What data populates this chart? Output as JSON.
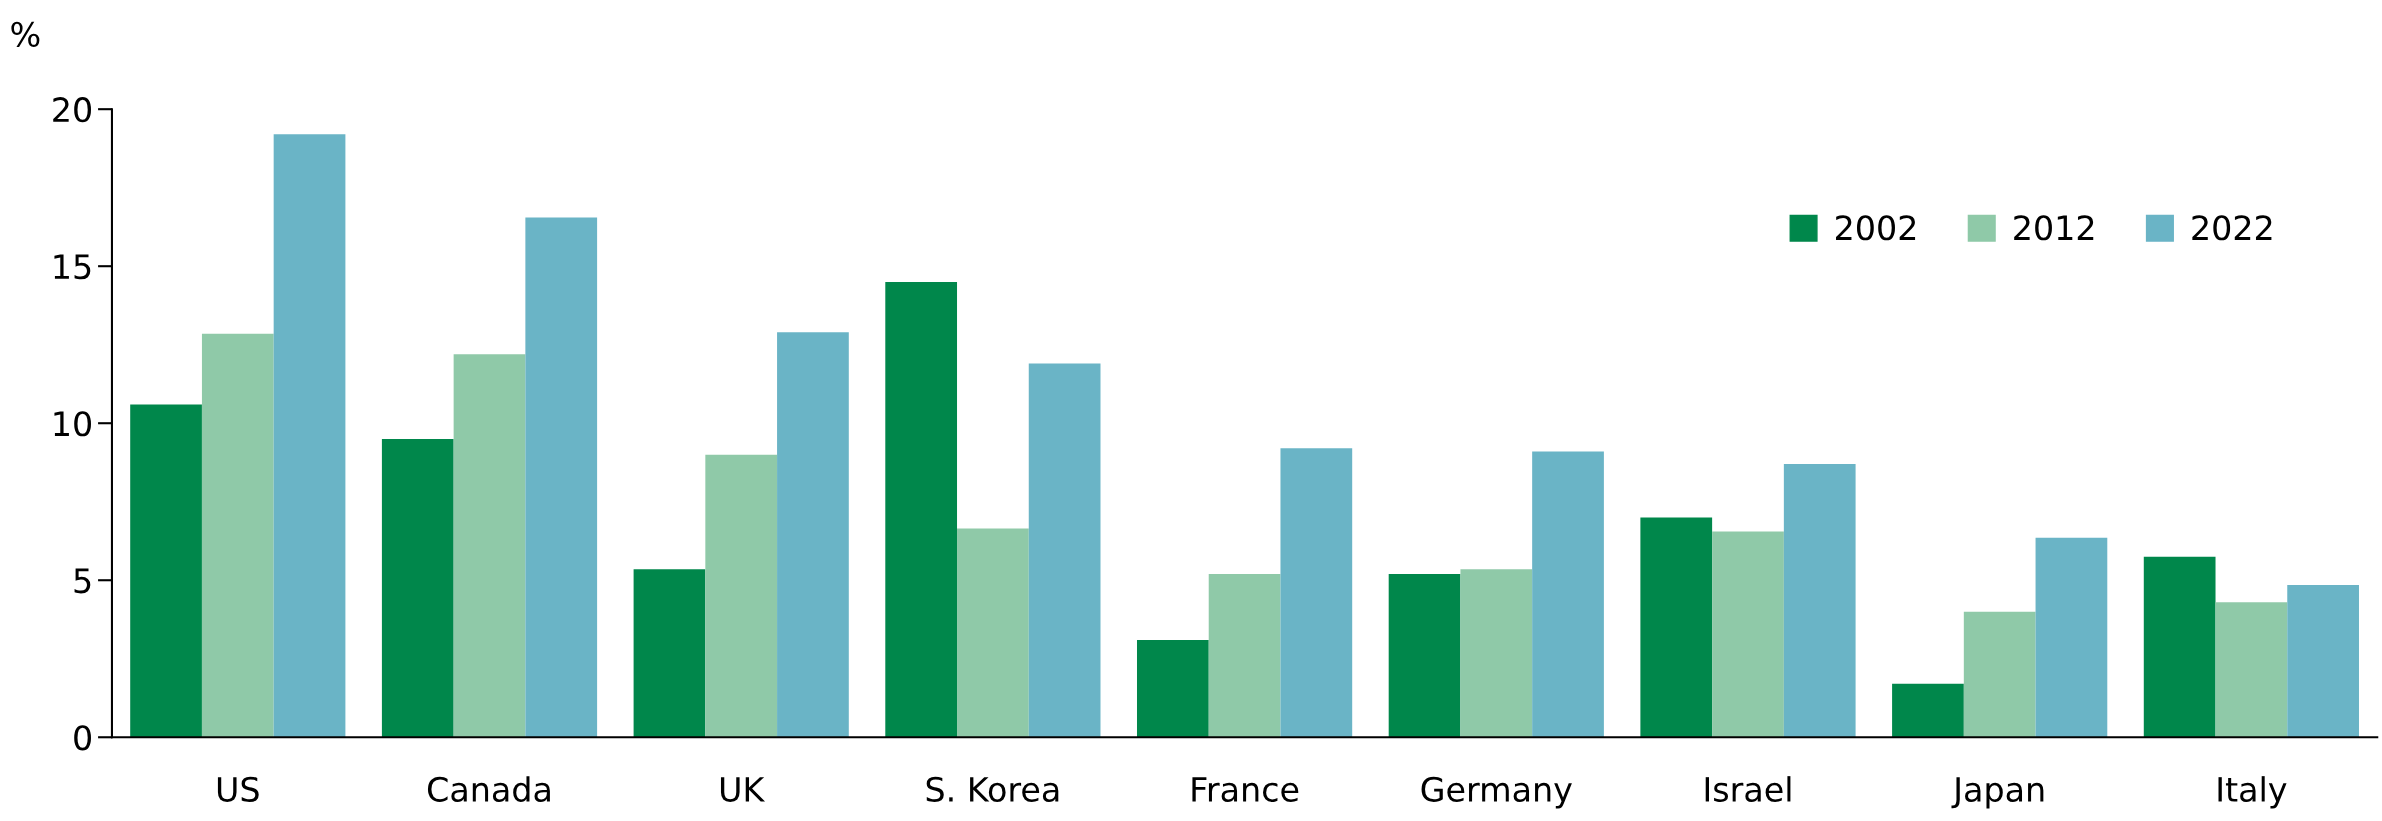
{
  "chart_data": {
    "type": "bar",
    "ylabel": "%",
    "categories": [
      "US",
      "Canada",
      "UK",
      "S. Korea",
      "France",
      "Germany",
      "Israel",
      "Japan",
      "Italy"
    ],
    "series": [
      {
        "name": "2002",
        "color": "#00874b",
        "values": [
          10.6,
          9.5,
          5.35,
          14.5,
          3.1,
          5.2,
          7.0,
          1.7,
          5.75
        ]
      },
      {
        "name": "2012",
        "color": "#8fc9a8",
        "values": [
          12.85,
          12.2,
          9.0,
          6.65,
          5.2,
          5.35,
          6.55,
          4.0,
          4.3
        ]
      },
      {
        "name": "2022",
        "color": "#6ab4c6",
        "values": [
          19.2,
          16.55,
          12.9,
          11.9,
          9.2,
          9.1,
          8.7,
          6.35,
          4.85
        ]
      }
    ],
    "ylim": [
      0,
      20
    ],
    "yticks": [
      0,
      5,
      10,
      15,
      20
    ],
    "grid": false,
    "legend": "top right"
  }
}
